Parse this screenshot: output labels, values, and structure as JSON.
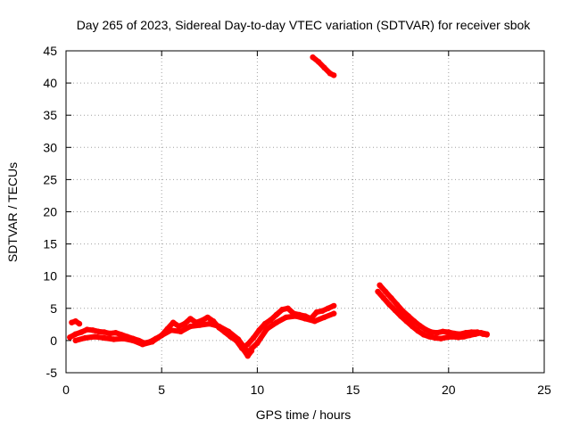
{
  "chart_data": {
    "type": "scatter",
    "title": "Day 265 of 2023, Sidereal Day-to-day VTEC variation (SDTVAR) for receiver sbok",
    "xlabel": "GPS time / hours",
    "ylabel": "SDTVAR / TECUs",
    "xlim": [
      0,
      25
    ],
    "ylim": [
      -5,
      45
    ],
    "xticks": [
      0,
      5,
      10,
      15,
      20,
      25
    ],
    "yticks": [
      -5,
      0,
      5,
      10,
      15,
      20,
      25,
      30,
      35,
      40,
      45
    ],
    "grid": true,
    "series": [
      {
        "name": "SDTVAR",
        "color": "#ff0000",
        "segments": [
          {
            "x": [
              0.3,
              0.5,
              0.7
            ],
            "y": [
              2.8,
              3.0,
              2.6
            ]
          },
          {
            "x": [
              0.2,
              0.5,
              0.8,
              1.1,
              1.4,
              1.7,
              2.0,
              2.3,
              2.6,
              2.9,
              3.2,
              3.5,
              3.8,
              4.1,
              4.4,
              4.7,
              5.0,
              5.3,
              5.6,
              5.9,
              6.2,
              6.5,
              6.8,
              7.1,
              7.4,
              7.7,
              8.0,
              8.3,
              8.6,
              8.9,
              9.2,
              9.5,
              9.8,
              10.1,
              10.4,
              10.7,
              11.0,
              11.3,
              11.6,
              11.9,
              12.2,
              12.5,
              12.8,
              13.1,
              13.4,
              13.7,
              14.0
            ],
            "y": [
              0.5,
              1.0,
              1.3,
              1.7,
              1.6,
              1.4,
              1.3,
              1.1,
              1.2,
              0.9,
              0.6,
              0.3,
              0.0,
              -0.4,
              -0.2,
              0.3,
              0.8,
              1.8,
              2.8,
              2.2,
              2.6,
              3.4,
              2.8,
              3.1,
              3.6,
              3.0,
              2.0,
              1.3,
              0.6,
              0.0,
              -1.2,
              -0.6,
              0.4,
              1.6,
              2.6,
              3.2,
              4.0,
              4.8,
              5.0,
              4.2,
              4.0,
              3.8,
              3.4,
              4.4,
              4.6,
              5.0,
              5.4
            ]
          },
          {
            "x": [
              0.5,
              1.0,
              1.5,
              2.0,
              2.5,
              3.0,
              3.5,
              4.0,
              4.5,
              5.0,
              5.5,
              6.0,
              6.5,
              7.0,
              7.5,
              8.0,
              8.5,
              9.0,
              9.5,
              10.0,
              10.5,
              11.0,
              11.5,
              12.0,
              12.5,
              13.0,
              13.5,
              14.0
            ],
            "y": [
              0.0,
              0.4,
              0.6,
              0.4,
              0.2,
              0.3,
              0.0,
              -0.6,
              -0.2,
              0.8,
              1.6,
              1.4,
              2.2,
              2.4,
              2.6,
              2.2,
              1.4,
              0.2,
              -1.8,
              -0.4,
              1.8,
              2.8,
              3.6,
              3.8,
              3.4,
              3.0,
              3.6,
              4.2
            ]
          },
          {
            "x": [
              9.3,
              9.5,
              9.7
            ],
            "y": [
              -1.5,
              -2.4,
              -1.6
            ]
          },
          {
            "x": [
              12.9,
              13.2,
              13.5,
              13.8,
              14.0
            ],
            "y": [
              44.0,
              43.3,
              42.4,
              41.5,
              41.2
            ]
          },
          {
            "x": [
              16.4,
              16.7,
              17.0,
              17.3,
              17.6,
              17.9,
              18.2,
              18.5,
              18.8,
              19.1,
              19.4,
              19.7,
              20.0,
              20.3,
              20.6,
              20.9,
              21.2,
              21.5,
              21.8,
              22.0
            ],
            "y": [
              8.6,
              7.6,
              6.6,
              5.6,
              4.6,
              3.8,
              3.0,
              2.3,
              1.7,
              1.3,
              1.2,
              1.4,
              1.3,
              1.1,
              1.0,
              1.2,
              1.3,
              1.3,
              1.0,
              0.9
            ]
          },
          {
            "x": [
              16.3,
              16.6,
              16.9,
              17.2,
              17.5,
              17.8,
              18.1,
              18.4,
              18.7,
              19.0,
              19.3,
              19.6,
              19.9,
              20.2,
              20.5,
              20.8,
              21.1,
              21.4,
              21.7,
              22.0
            ],
            "y": [
              7.6,
              6.6,
              5.6,
              4.7,
              3.8,
              3.0,
              2.2,
              1.5,
              0.9,
              0.6,
              0.4,
              0.3,
              0.5,
              0.6,
              0.5,
              0.6,
              0.8,
              1.0,
              1.2,
              1.0
            ]
          }
        ]
      }
    ]
  }
}
